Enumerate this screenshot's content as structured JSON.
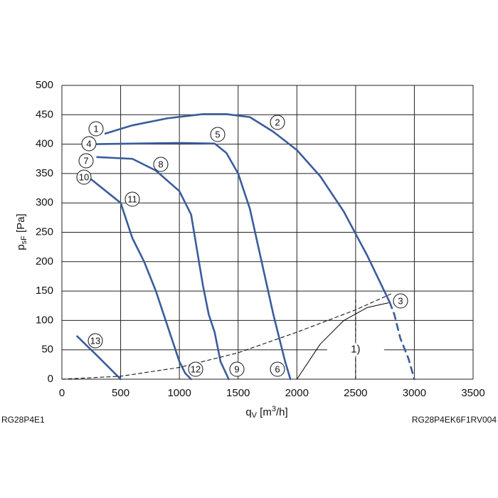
{
  "chart_data": {
    "type": "line",
    "xlabel": [
      "q",
      "V",
      " [m",
      "3",
      "/h]"
    ],
    "ylabel": [
      "p",
      "sF",
      " [Pa]"
    ],
    "xlim": [
      0,
      3500
    ],
    "xticks": [
      0,
      500,
      1000,
      1500,
      2000,
      2500,
      3000,
      3500
    ],
    "ylim": [
      0,
      500
    ],
    "yticks": [
      0,
      50,
      100,
      150,
      200,
      250,
      300,
      350,
      400,
      450,
      500
    ],
    "grid": true,
    "series": [
      {
        "color": "#3b5c9c",
        "style": "solid",
        "x": [
          370,
          600,
          900,
          1200,
          1400,
          1600,
          1800,
          2000,
          2200,
          2400,
          2600,
          2790
        ],
        "values": [
          418,
          432,
          444,
          451,
          451,
          446,
          421,
          390,
          345,
          285,
          210,
          131
        ]
      },
      {
        "color": "#3b5c9c",
        "style": "dashed",
        "x": [
          2790,
          2830,
          2880,
          2950,
          3000
        ],
        "values": [
          131,
          110,
          70,
          35,
          0
        ]
      },
      {
        "color": "#3b5c9c",
        "style": "solid",
        "x": [
          300,
          600,
          1000,
          1300,
          1400,
          1500,
          1600,
          1700,
          1800,
          1900,
          1945
        ],
        "values": [
          400,
          401,
          402,
          401,
          385,
          350,
          290,
          200,
          110,
          30,
          0
        ]
      },
      {
        "color": "#3b5c9c",
        "style": "solid",
        "x": [
          300,
          600,
          800,
          1000,
          1100,
          1150,
          1200,
          1250,
          1300,
          1350,
          1420
        ],
        "values": [
          378,
          375,
          355,
          320,
          280,
          220,
          160,
          110,
          80,
          30,
          0
        ]
      },
      {
        "color": "#3b5c9c",
        "style": "solid",
        "x": [
          250,
          500,
          600,
          700,
          800,
          900,
          1000,
          1050,
          1100
        ],
        "values": [
          340,
          300,
          240,
          200,
          150,
          90,
          30,
          10,
          0
        ]
      },
      {
        "color": "#3b5c9c",
        "style": "solid",
        "x": [
          130,
          300,
          500
        ],
        "values": [
          73,
          40,
          0
        ]
      },
      {
        "color": "#000000",
        "style": "dashed-thin",
        "x": [
          0,
          500,
          1000,
          1500,
          2000,
          2500,
          2800
        ],
        "values": [
          0,
          5,
          20,
          45,
          80,
          118,
          145
        ]
      },
      {
        "color": "#000000",
        "style": "thin",
        "x": [
          2000,
          2200,
          2400,
          2600,
          2780
        ],
        "values": [
          0,
          60,
          100,
          122,
          130
        ]
      }
    ],
    "markers": [
      "1",
      "2",
      "3",
      "4",
      "5",
      "6",
      "7",
      "8",
      "9",
      "10",
      "11",
      "12",
      "13"
    ],
    "note": "1)",
    "footer_left": "RG28P4E1",
    "footer_right": "RG28P4EK6F1RV004"
  }
}
